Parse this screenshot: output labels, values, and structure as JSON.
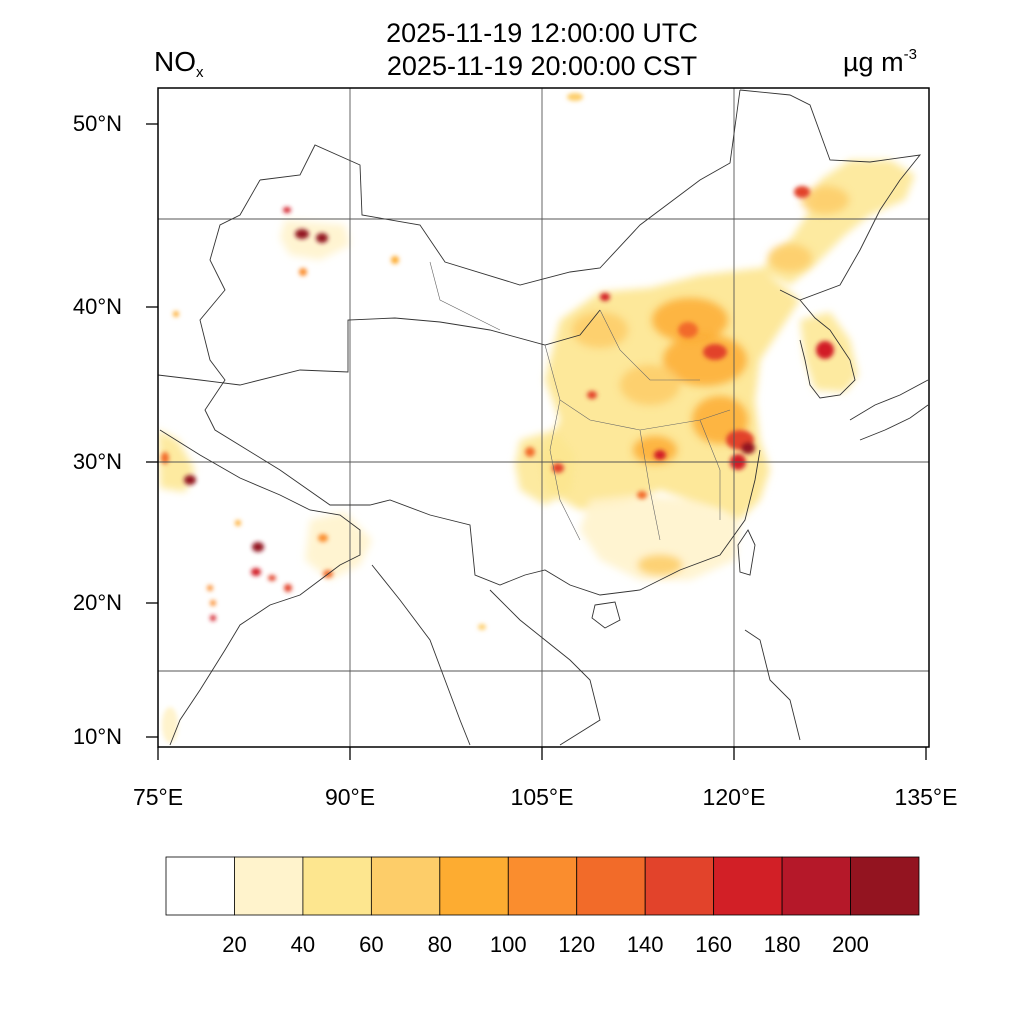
{
  "title": {
    "utc": "2025-11-19 12:00:00 UTC",
    "cst": "2025-11-19 20:00:00 CST"
  },
  "species": {
    "main": "NO",
    "sub": "x"
  },
  "units": {
    "main": "µg m",
    "sup": "-3"
  },
  "lat_labels": [
    "50°N",
    "40°N",
    "30°N",
    "20°N",
    "10°N"
  ],
  "lon_labels": [
    "75°E",
    "90°E",
    "105°E",
    "120°E",
    "135°E"
  ],
  "legend": {
    "levels": [
      "20",
      "40",
      "60",
      "80",
      "100",
      "120",
      "140",
      "160",
      "180",
      "200"
    ],
    "colors": [
      "#ffffff",
      "#fff3cc",
      "#fde68f",
      "#fdcd69",
      "#fdac31",
      "#fa8d2e",
      "#f26b29",
      "#e2432b",
      "#d21f26",
      "#b51829",
      "#931420"
    ]
  }
}
